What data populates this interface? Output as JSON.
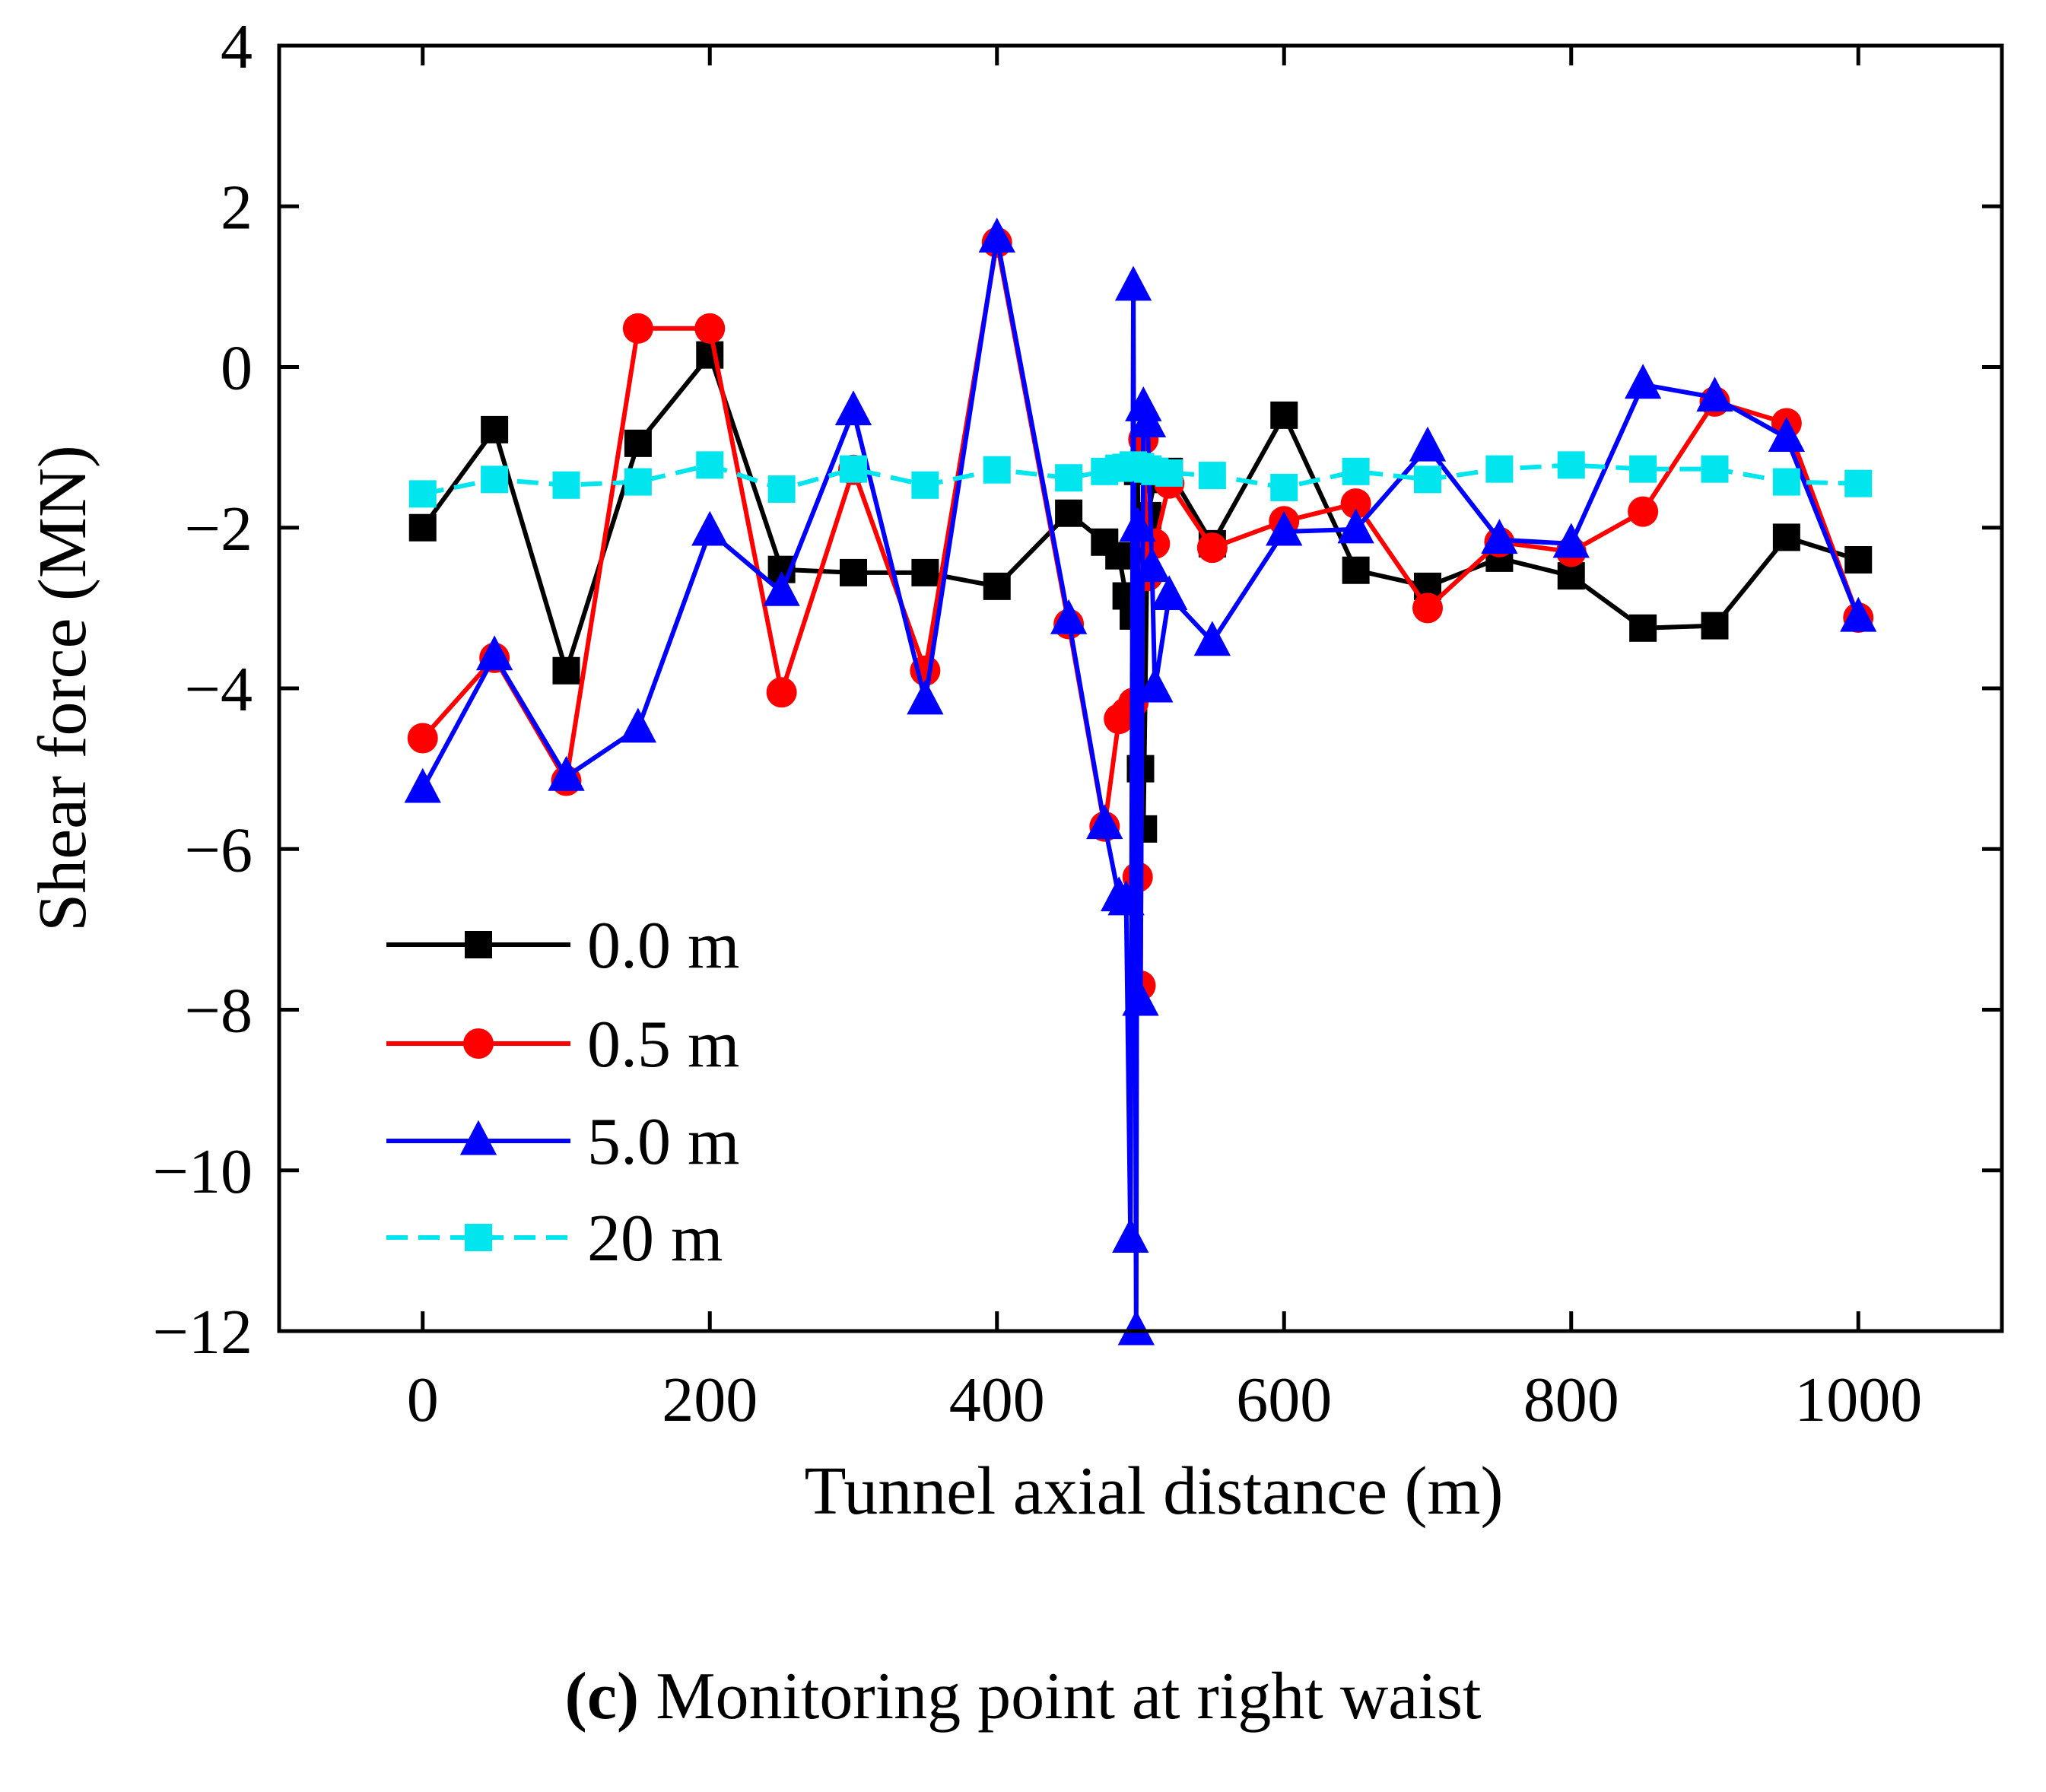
{
  "chart_data": {
    "type": "line",
    "xlabel": "Tunnel axial distance (m)",
    "ylabel": "Shear force (MN)",
    "xlim": [
      -100,
      1100
    ],
    "ylim": [
      -12,
      4
    ],
    "xticks": [
      0,
      200,
      400,
      600,
      800,
      1000
    ],
    "yticks": [
      4,
      2,
      0,
      -2,
      -4,
      -6,
      -8,
      -10,
      -12
    ],
    "ytick_labels": [
      "4",
      "2",
      "0",
      "−2",
      "−4",
      "−6",
      "−8",
      "−10",
      "−12"
    ],
    "legend_position": "bottom-left",
    "series": [
      {
        "name": "0.0 m",
        "color": "#000000",
        "marker": "square",
        "dashed": false,
        "x": [
          0,
          50,
          100,
          150,
          200,
          250,
          300,
          350,
          400,
          450,
          475,
          485,
          490,
          495,
          498,
          500,
          502,
          505,
          510,
          520,
          550,
          600,
          650,
          700,
          750,
          800,
          850,
          900,
          950,
          1000
        ],
        "y": [
          -2.0,
          -0.78,
          -3.78,
          -0.95,
          0.15,
          -2.52,
          -2.56,
          -2.56,
          -2.73,
          -1.82,
          -2.18,
          -2.35,
          -2.85,
          -3.1,
          -1.3,
          -5.0,
          -5.75,
          -1.85,
          -1.4,
          -1.3,
          -2.2,
          -0.6,
          -2.53,
          -2.73,
          -2.38,
          -2.6,
          -3.25,
          -3.22,
          -2.12,
          -2.4
        ]
      },
      {
        "name": "0.5 m",
        "color": "#ff0000",
        "marker": "circle",
        "dashed": false,
        "x": [
          0,
          50,
          100,
          150,
          200,
          250,
          300,
          350,
          400,
          450,
          475,
          485,
          490,
          495,
          498,
          500,
          502,
          505,
          510,
          520,
          550,
          600,
          650,
          700,
          750,
          800,
          850,
          900,
          950,
          1000
        ],
        "y": [
          -4.62,
          -3.62,
          -5.15,
          0.48,
          0.48,
          -4.05,
          -1.28,
          -3.78,
          1.55,
          -3.2,
          -5.72,
          -4.38,
          -4.3,
          -4.18,
          -6.35,
          -7.7,
          -0.9,
          -2.6,
          -2.2,
          -1.45,
          -2.25,
          -1.92,
          -1.7,
          -3.0,
          -2.18,
          -2.3,
          -1.8,
          -0.43,
          -0.7,
          -3.12
        ]
      },
      {
        "name": "5.0 m",
        "color": "#0000ff",
        "marker": "triangle",
        "dashed": false,
        "x": [
          0,
          50,
          100,
          150,
          200,
          250,
          300,
          350,
          400,
          450,
          475,
          485,
          490,
          493,
          495,
          497,
          498,
          500,
          502,
          505,
          508,
          510,
          520,
          550,
          600,
          650,
          700,
          750,
          800,
          850,
          900,
          950,
          1000
        ],
        "y": [
          -5.25,
          -3.6,
          -5.1,
          -4.5,
          -2.05,
          -2.8,
          -0.55,
          -4.15,
          1.6,
          -3.15,
          -5.7,
          -6.6,
          -6.65,
          -10.85,
          1.0,
          -12.0,
          -2.0,
          -7.9,
          -0.5,
          -0.7,
          -2.5,
          -4.0,
          -2.85,
          -3.42,
          -2.05,
          -2.02,
          -1.0,
          -2.15,
          -2.2,
          -0.22,
          -0.38,
          -0.88,
          -3.12
        ]
      },
      {
        "name": "20 m",
        "color": "#00e5ee",
        "marker": "square",
        "dashed": true,
        "x": [
          0,
          50,
          100,
          150,
          200,
          250,
          300,
          350,
          400,
          450,
          475,
          485,
          490,
          495,
          500,
          505,
          510,
          520,
          550,
          600,
          650,
          700,
          750,
          800,
          850,
          900,
          950,
          1000
        ],
        "y": [
          -1.58,
          -1.4,
          -1.47,
          -1.43,
          -1.22,
          -1.52,
          -1.27,
          -1.47,
          -1.28,
          -1.38,
          -1.3,
          -1.26,
          -1.25,
          -1.22,
          -1.24,
          -1.27,
          -1.3,
          -1.32,
          -1.35,
          -1.5,
          -1.3,
          -1.4,
          -1.27,
          -1.22,
          -1.27,
          -1.27,
          -1.43,
          -1.45
        ]
      }
    ]
  },
  "caption": {
    "label": "(c)",
    "text": " Monitoring point at right waist"
  }
}
